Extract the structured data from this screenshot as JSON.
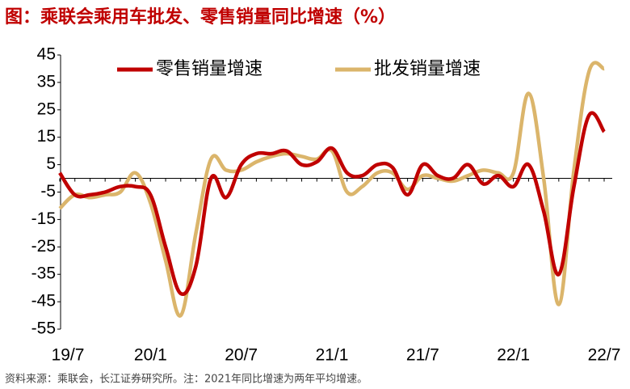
{
  "chart_data": {
    "type": "line",
    "title": "图：乘联会乘用车批发、零售销量同比增速（%）",
    "source": "资料来源：乘联会，长江证券研究所。注：2021年同比增速为两年平均增速。",
    "categories": [
      "19/7",
      null,
      null,
      null,
      null,
      null,
      "20/1",
      null,
      null,
      null,
      null,
      null,
      "20/7",
      null,
      null,
      null,
      null,
      null,
      "21/1",
      null,
      null,
      null,
      null,
      null,
      "21/7",
      null,
      null,
      null,
      null,
      null,
      "22/1",
      null,
      null,
      null,
      null,
      null,
      "22/7"
    ],
    "series": [
      {
        "name": "零售销量增速",
        "color": "#c00000",
        "values": [
          2,
          -6,
          -6,
          -5,
          -3,
          -3,
          -6,
          -25,
          -42,
          -32,
          0,
          -7,
          5,
          9,
          9,
          10,
          5,
          6,
          11,
          2,
          1,
          5,
          4,
          -6,
          5,
          1,
          0,
          5,
          -2,
          1,
          -3,
          5,
          -12,
          -35,
          -3,
          23,
          17
        ]
      },
      {
        "name": "批发销量增速",
        "color": "#dbb56b",
        "values": [
          -11,
          -6,
          -7,
          -6,
          -5,
          2,
          -9,
          -30,
          -50,
          -20,
          7,
          3,
          3,
          6,
          8,
          9,
          8,
          7,
          10,
          -5,
          -3,
          2,
          2,
          -4,
          1,
          0,
          -1,
          1,
          3,
          2,
          2,
          31,
          0,
          -46,
          3,
          39,
          40
        ]
      }
    ],
    "ylim": [
      -55,
      45
    ],
    "yticks": [
      -55,
      -45,
      -35,
      -25,
      -15,
      -5,
      5,
      15,
      25,
      35,
      45
    ]
  }
}
